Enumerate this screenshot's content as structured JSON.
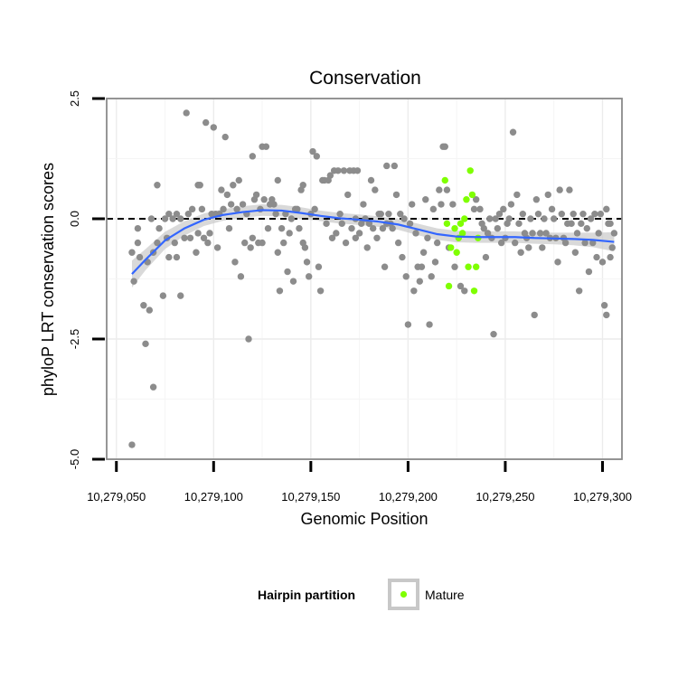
{
  "chart_data": {
    "type": "scatter",
    "title": "Conservation",
    "xlabel": "Genomic Position",
    "ylabel": "phyloP LRT conservation scores",
    "xlim": [
      10279045,
      10279310
    ],
    "ylim": [
      -5.0,
      2.5
    ],
    "x_ticks": [
      10279050,
      10279100,
      10279150,
      10279200,
      10279250,
      10279300
    ],
    "x_tick_labels": [
      "10,279,050",
      "10,279,100",
      "10,279,150",
      "10,279,200",
      "10,279,250",
      "10,279,300"
    ],
    "y_ticks": [
      -5.0,
      -2.5,
      0.0,
      2.5
    ],
    "y_tick_labels": [
      "-5.0",
      "-2.5",
      "0.0",
      "2.5"
    ],
    "reference_line": {
      "y": 0,
      "style": "dashed"
    },
    "grid": true,
    "legend": {
      "title": "Hairpin partition",
      "entries": [
        {
          "label": "Mature",
          "color": "#7fff00"
        }
      ],
      "position": "bottom"
    },
    "colors": {
      "other": "#8c8c8c",
      "mature": "#7fff00",
      "smooth": "#3366ff",
      "band": "#cccccc"
    },
    "series": [
      {
        "name": "Other",
        "points": [
          [
            10279058,
            -0.7
          ],
          [
            10279058,
            -4.7
          ],
          [
            10279059,
            -1.3
          ],
          [
            10279061,
            -0.5
          ],
          [
            10279061,
            -0.2
          ],
          [
            10279062,
            -0.8
          ],
          [
            10279064,
            -1.8
          ],
          [
            10279065,
            -2.6
          ],
          [
            10279066,
            -0.9
          ],
          [
            10279067,
            -1.9
          ],
          [
            10279068,
            0.0
          ],
          [
            10279069,
            -3.5
          ],
          [
            10279069,
            -0.7
          ],
          [
            10279071,
            -0.5
          ],
          [
            10279071,
            0.7
          ],
          [
            10279072,
            -0.2
          ],
          [
            10279074,
            -1.6
          ],
          [
            10279075,
            0.0
          ],
          [
            10279076,
            -0.4
          ],
          [
            10279077,
            0.1
          ],
          [
            10279077,
            -0.8
          ],
          [
            10279079,
            0.0
          ],
          [
            10279080,
            -0.5
          ],
          [
            10279081,
            0.1
          ],
          [
            10279081,
            -0.8
          ],
          [
            10279083,
            -1.6
          ],
          [
            10279083,
            0.0
          ],
          [
            10279085,
            -0.4
          ],
          [
            10279086,
            2.2
          ],
          [
            10279087,
            0.1
          ],
          [
            10279088,
            -0.4
          ],
          [
            10279089,
            0.2
          ],
          [
            10279091,
            -0.7
          ],
          [
            10279092,
            0.7
          ],
          [
            10279092,
            -0.3
          ],
          [
            10279093,
            0.7
          ],
          [
            10279094,
            0.2
          ],
          [
            10279095,
            -0.4
          ],
          [
            10279096,
            2.0
          ],
          [
            10279097,
            -0.5
          ],
          [
            10279098,
            -0.3
          ],
          [
            10279099,
            0.1
          ],
          [
            10279100,
            1.9
          ],
          [
            10279101,
            0.1
          ],
          [
            10279102,
            -0.6
          ],
          [
            10279103,
            0.1
          ],
          [
            10279104,
            0.6
          ],
          [
            10279105,
            0.2
          ],
          [
            10279106,
            1.7
          ],
          [
            10279107,
            0.5
          ],
          [
            10279108,
            -0.2
          ],
          [
            10279109,
            0.3
          ],
          [
            10279110,
            0.7
          ],
          [
            10279111,
            -0.9
          ],
          [
            10279112,
            0.2
          ],
          [
            10279113,
            0.8
          ],
          [
            10279114,
            -1.2
          ],
          [
            10279115,
            0.3
          ],
          [
            10279116,
            -0.5
          ],
          [
            10279117,
            0.1
          ],
          [
            10279118,
            -2.5
          ],
          [
            10279119,
            -0.6
          ],
          [
            10279120,
            1.3
          ],
          [
            10279120,
            -0.4
          ],
          [
            10279121,
            0.4
          ],
          [
            10279122,
            0.5
          ],
          [
            10279123,
            -0.5
          ],
          [
            10279124,
            0.2
          ],
          [
            10279125,
            1.5
          ],
          [
            10279125,
            -0.5
          ],
          [
            10279126,
            0.4
          ],
          [
            10279127,
            1.5
          ],
          [
            10279128,
            -0.2
          ],
          [
            10279129,
            0.3
          ],
          [
            10279130,
            0.4
          ],
          [
            10279131,
            0.3
          ],
          [
            10279132,
            0.1
          ],
          [
            10279133,
            -0.7
          ],
          [
            10279133,
            0.8
          ],
          [
            10279134,
            -1.5
          ],
          [
            10279135,
            -0.2
          ],
          [
            10279136,
            -0.5
          ],
          [
            10279137,
            0.1
          ],
          [
            10279138,
            -1.1
          ],
          [
            10279139,
            -0.3
          ],
          [
            10279140,
            0.0
          ],
          [
            10279141,
            -1.3
          ],
          [
            10279142,
            0.2
          ],
          [
            10279143,
            0.2
          ],
          [
            10279144,
            -0.2
          ],
          [
            10279145,
            0.6
          ],
          [
            10279146,
            0.7
          ],
          [
            10279146,
            -0.5
          ],
          [
            10279147,
            -0.6
          ],
          [
            10279148,
            -0.9
          ],
          [
            10279149,
            -1.2
          ],
          [
            10279150,
            0.1
          ],
          [
            10279151,
            1.4
          ],
          [
            10279152,
            0.2
          ],
          [
            10279153,
            1.3
          ],
          [
            10279154,
            -1.0
          ],
          [
            10279155,
            -1.5
          ],
          [
            10279156,
            0.8
          ],
          [
            10279157,
            0.8
          ],
          [
            10279158,
            -0.1
          ],
          [
            10279159,
            0.8
          ],
          [
            10279160,
            0.9
          ],
          [
            10279161,
            -0.4
          ],
          [
            10279162,
            1.0
          ],
          [
            10279163,
            -0.3
          ],
          [
            10279164,
            1.0
          ],
          [
            10279165,
            0.1
          ],
          [
            10279166,
            -0.1
          ],
          [
            10279167,
            1.0
          ],
          [
            10279168,
            -0.5
          ],
          [
            10279169,
            0.5
          ],
          [
            10279170,
            1.0
          ],
          [
            10279171,
            -0.2
          ],
          [
            10279172,
            1.0
          ],
          [
            10279173,
            -0.4
          ],
          [
            10279173,
            0.0
          ],
          [
            10279174,
            1.0
          ],
          [
            10279175,
            -0.3
          ],
          [
            10279176,
            -0.1
          ],
          [
            10279177,
            0.3
          ],
          [
            10279178,
            0.0
          ],
          [
            10279179,
            -0.6
          ],
          [
            10279180,
            -0.1
          ],
          [
            10279181,
            0.8
          ],
          [
            10279182,
            -0.2
          ],
          [
            10279183,
            0.6
          ],
          [
            10279184,
            -0.4
          ],
          [
            10279185,
            0.1
          ],
          [
            10279186,
            0.1
          ],
          [
            10279187,
            -0.2
          ],
          [
            10279188,
            -1.0
          ],
          [
            10279189,
            1.1
          ],
          [
            10279189,
            -0.1
          ],
          [
            10279190,
            0.1
          ],
          [
            10279191,
            -0.1
          ],
          [
            10279192,
            -0.2
          ],
          [
            10279193,
            1.1
          ],
          [
            10279194,
            0.5
          ],
          [
            10279195,
            -0.5
          ],
          [
            10279196,
            0.1
          ],
          [
            10279197,
            -0.8
          ],
          [
            10279198,
            0.0
          ],
          [
            10279199,
            -1.2
          ],
          [
            10279200,
            -2.2
          ],
          [
            10279201,
            -0.1
          ],
          [
            10279202,
            0.3
          ],
          [
            10279203,
            -1.5
          ],
          [
            10279204,
            -0.3
          ],
          [
            10279205,
            -1.0
          ],
          [
            10279206,
            -1.3
          ],
          [
            10279207,
            -1.0
          ],
          [
            10279208,
            -0.7
          ],
          [
            10279209,
            0.4
          ],
          [
            10279210,
            -0.4
          ],
          [
            10279211,
            -2.2
          ],
          [
            10279212,
            -1.2
          ],
          [
            10279213,
            0.2
          ],
          [
            10279214,
            -0.9
          ],
          [
            10279215,
            -0.5
          ],
          [
            10279216,
            0.6
          ],
          [
            10279217,
            0.3
          ],
          [
            10279218,
            1.5
          ],
          [
            10279219,
            1.5
          ],
          [
            10279220,
            0.6
          ],
          [
            10279221,
            -0.6
          ],
          [
            10279223,
            0.3
          ],
          [
            10279224,
            -1.0
          ],
          [
            10279227,
            -1.4
          ],
          [
            10279229,
            -1.5
          ],
          [
            10279234,
            0.2
          ],
          [
            10279235,
            0.4
          ],
          [
            10279237,
            0.2
          ],
          [
            10279238,
            -0.1
          ],
          [
            10279239,
            -0.2
          ],
          [
            10279240,
            -0.8
          ],
          [
            10279241,
            -0.3
          ],
          [
            10279242,
            0.0
          ],
          [
            10279243,
            -0.4
          ],
          [
            10279244,
            -2.4
          ],
          [
            10279245,
            0.0
          ],
          [
            10279246,
            -0.2
          ],
          [
            10279247,
            0.1
          ],
          [
            10279248,
            -0.5
          ],
          [
            10279249,
            0.2
          ],
          [
            10279250,
            -0.4
          ],
          [
            10279251,
            -0.1
          ],
          [
            10279252,
            0.0
          ],
          [
            10279253,
            0.3
          ],
          [
            10279254,
            1.8
          ],
          [
            10279255,
            -0.5
          ],
          [
            10279256,
            0.5
          ],
          [
            10279257,
            -0.1
          ],
          [
            10279258,
            -0.7
          ],
          [
            10279259,
            0.1
          ],
          [
            10279260,
            -0.3
          ],
          [
            10279261,
            -0.4
          ],
          [
            10279262,
            -0.6
          ],
          [
            10279263,
            0.0
          ],
          [
            10279264,
            -0.3
          ],
          [
            10279265,
            -2.0
          ],
          [
            10279266,
            0.4
          ],
          [
            10279267,
            0.1
          ],
          [
            10279268,
            -0.3
          ],
          [
            10279269,
            -0.6
          ],
          [
            10279270,
            0.0
          ],
          [
            10279271,
            -0.3
          ],
          [
            10279272,
            0.5
          ],
          [
            10279273,
            -0.4
          ],
          [
            10279274,
            0.2
          ],
          [
            10279275,
            0.0
          ],
          [
            10279276,
            -0.4
          ],
          [
            10279277,
            -0.9
          ],
          [
            10279278,
            0.6
          ],
          [
            10279279,
            0.1
          ],
          [
            10279280,
            -0.4
          ],
          [
            10279281,
            -0.5
          ],
          [
            10279282,
            -0.1
          ],
          [
            10279283,
            0.6
          ],
          [
            10279284,
            -0.1
          ],
          [
            10279285,
            0.1
          ],
          [
            10279286,
            -0.7
          ],
          [
            10279287,
            -0.3
          ],
          [
            10279288,
            -1.5
          ],
          [
            10279289,
            -0.1
          ],
          [
            10279290,
            0.1
          ],
          [
            10279291,
            -0.5
          ],
          [
            10279292,
            -0.2
          ],
          [
            10279293,
            -1.1
          ],
          [
            10279294,
            0.0
          ],
          [
            10279295,
            -0.5
          ],
          [
            10279296,
            0.1
          ],
          [
            10279297,
            -0.8
          ],
          [
            10279298,
            -0.3
          ],
          [
            10279299,
            0.1
          ],
          [
            10279300,
            -0.9
          ],
          [
            10279301,
            -1.8
          ],
          [
            10279302,
            -2.0
          ],
          [
            10279302,
            0.2
          ],
          [
            10279303,
            -0.1
          ],
          [
            10279304,
            -0.8
          ],
          [
            10279304,
            -0.1
          ],
          [
            10279305,
            -0.6
          ],
          [
            10279306,
            -0.3
          ]
        ]
      },
      {
        "name": "Mature",
        "points": [
          [
            10279219,
            0.8
          ],
          [
            10279220,
            -0.1
          ],
          [
            10279221,
            -1.4
          ],
          [
            10279222,
            -0.6
          ],
          [
            10279224,
            -0.2
          ],
          [
            10279225,
            -0.7
          ],
          [
            10279226,
            -0.4
          ],
          [
            10279227,
            -0.1
          ],
          [
            10279228,
            -0.3
          ],
          [
            10279229,
            0.0
          ],
          [
            10279230,
            0.4
          ],
          [
            10279231,
            -1.0
          ],
          [
            10279232,
            1.0
          ],
          [
            10279233,
            0.5
          ],
          [
            10279234,
            -1.5
          ],
          [
            10279235,
            -1.0
          ],
          [
            10279236,
            -0.4
          ]
        ]
      }
    ],
    "smooth": {
      "x": [
        10279058,
        10279065,
        10279075,
        10279085,
        10279095,
        10279105,
        10279115,
        10279125,
        10279135,
        10279145,
        10279155,
        10279165,
        10279175,
        10279185,
        10279195,
        10279205,
        10279215,
        10279225,
        10279235,
        10279245,
        10279255,
        10279265,
        10279275,
        10279285,
        10279295,
        10279306
      ],
      "y": [
        -1.15,
        -0.85,
        -0.45,
        -0.2,
        -0.02,
        0.08,
        0.14,
        0.18,
        0.17,
        0.12,
        0.06,
        0.01,
        -0.02,
        -0.06,
        -0.12,
        -0.22,
        -0.32,
        -0.37,
        -0.38,
        -0.38,
        -0.38,
        -0.4,
        -0.41,
        -0.42,
        -0.44,
        -0.48
      ],
      "se": [
        0.28,
        0.22,
        0.18,
        0.15,
        0.13,
        0.12,
        0.12,
        0.12,
        0.12,
        0.12,
        0.11,
        0.11,
        0.11,
        0.11,
        0.11,
        0.12,
        0.12,
        0.12,
        0.12,
        0.12,
        0.12,
        0.12,
        0.12,
        0.13,
        0.15,
        0.2
      ]
    }
  }
}
